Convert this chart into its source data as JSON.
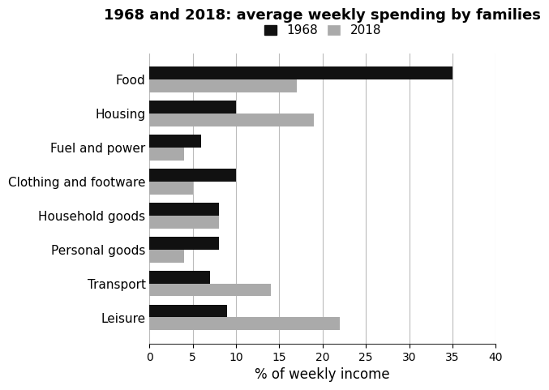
{
  "title": "1968 and 2018: average weekly spending by families",
  "categories": [
    "Food",
    "Housing",
    "Fuel and power",
    "Clothing and footware",
    "Household goods",
    "Personal goods",
    "Transport",
    "Leisure"
  ],
  "values_1968": [
    35,
    10,
    6,
    10,
    8,
    8,
    7,
    9
  ],
  "values_2018": [
    17,
    19,
    4,
    5,
    8,
    4,
    14,
    22
  ],
  "color_1968": "#111111",
  "color_2018": "#aaaaaa",
  "xlabel": "% of weekly income",
  "xlim": [
    0,
    40
  ],
  "xticks": [
    0,
    5,
    10,
    15,
    20,
    25,
    30,
    35,
    40
  ],
  "legend_labels": [
    "1968",
    "2018"
  ],
  "bar_height": 0.38,
  "background_color": "#ffffff",
  "grid_color": "#bbbbbb"
}
